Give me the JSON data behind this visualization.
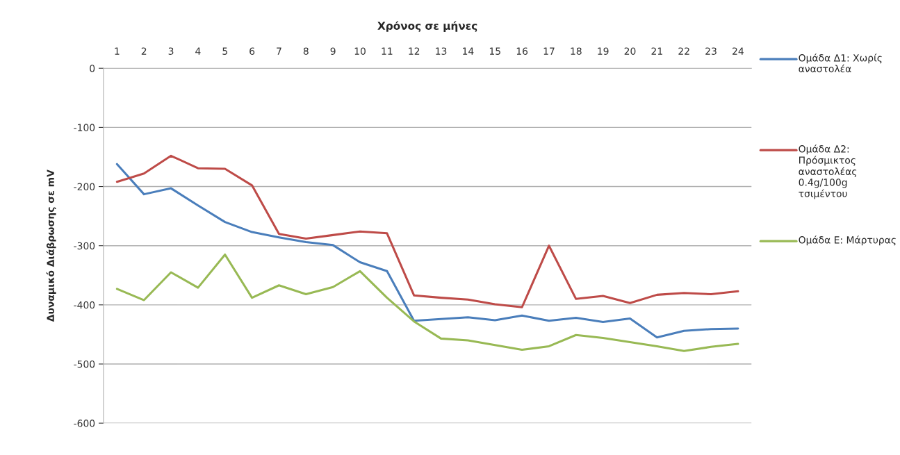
{
  "chart_data": {
    "type": "line",
    "title": "Χρόνος σε μήνες",
    "ylabel": "Δυναμικό Διάβρωσης σε mV",
    "categories": [
      "1",
      "2",
      "3",
      "4",
      "5",
      "6",
      "7",
      "8",
      "9",
      "10",
      "11",
      "12",
      "13",
      "14",
      "15",
      "16",
      "17",
      "18",
      "19",
      "20",
      "21",
      "22",
      "23",
      "24"
    ],
    "ylim": [
      -600,
      0
    ],
    "yticks": [
      -600,
      -500,
      -400,
      -300,
      -200,
      -100,
      0
    ],
    "grid": "y",
    "legend": "right",
    "marker": "none",
    "line_style": "solid",
    "series": [
      {
        "name": "Ομάδα Δ1: Χωρίς αναστολέα",
        "color": "#4a7ebb",
        "values": [
          -162,
          -213,
          -203,
          -232,
          -260,
          -277,
          -286,
          -294,
          -299,
          -328,
          -343,
          -427,
          -424,
          -421,
          -426,
          -418,
          -427,
          -422,
          -429,
          -423,
          -455,
          -444,
          -441,
          -440
        ]
      },
      {
        "name": "Ομάδα Δ2: Πρόσμικτος αναστολέας 0.4g/100g τσιμέντου",
        "color": "#be4b48",
        "values": [
          -192,
          -178,
          -148,
          -169,
          -170,
          -198,
          -280,
          -288,
          -282,
          -276,
          -279,
          -384,
          -388,
          -391,
          -399,
          -404,
          -300,
          -390,
          -385,
          -397,
          -383,
          -380,
          -382,
          -377
        ]
      },
      {
        "name": "Ομάδα Ε: Μάρτυρας",
        "color": "#98b954",
        "values": [
          -373,
          -392,
          -345,
          -371,
          -315,
          -388,
          -367,
          -382,
          -370,
          -343,
          -388,
          -428,
          -457,
          -460,
          -468,
          -476,
          -470,
          -451,
          -456,
          -463,
          -470,
          -478,
          -471,
          -466
        ]
      }
    ]
  }
}
